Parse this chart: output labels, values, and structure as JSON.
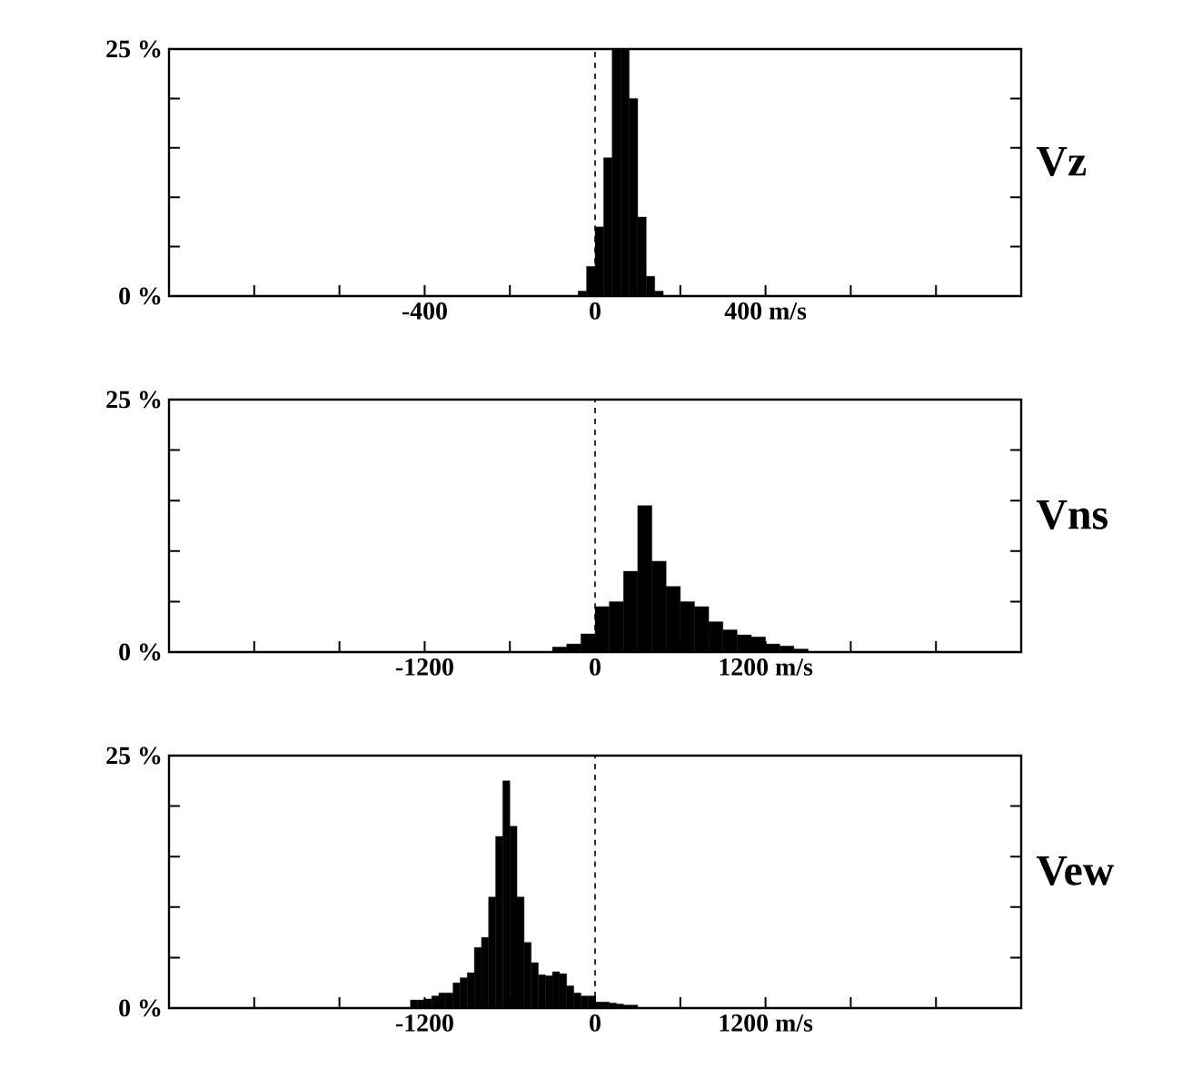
{
  "chart_data": [
    {
      "type": "histogram",
      "title": "Vz",
      "color": "#000000",
      "bins": [
        -40,
        -20,
        0,
        20,
        40,
        60,
        80,
        100,
        120,
        140,
        160
      ],
      "values": [
        0.5,
        3,
        7,
        14,
        25,
        25,
        20,
        8,
        2,
        0.5
      ],
      "xlim": [
        -1000,
        1000
      ],
      "xticks": [
        {
          "value": -800,
          "label": null
        },
        {
          "value": -600,
          "label": null
        },
        {
          "value": -400,
          "label": "-400"
        },
        {
          "value": -200,
          "label": null
        },
        {
          "value": 0,
          "label": "0"
        },
        {
          "value": 200,
          "label": null
        },
        {
          "value": 400,
          "label": "400 m/s"
        },
        {
          "value": 600,
          "label": null
        },
        {
          "value": 800,
          "label": null
        }
      ],
      "ylim": [
        0,
        25
      ],
      "yticks": [
        {
          "value": 0,
          "label": "0 %"
        },
        {
          "value": 5,
          "label": null
        },
        {
          "value": 10,
          "label": null
        },
        {
          "value": 15,
          "label": null
        },
        {
          "value": 20,
          "label": null
        },
        {
          "value": 25,
          "label": "25 %"
        }
      ],
      "ref_lines": [
        {
          "axis": "x",
          "value": 0,
          "line_style": "dashed"
        }
      ]
    },
    {
      "type": "histogram",
      "title": "Vns",
      "color": "#000000",
      "bins": [
        -300,
        -200,
        -100,
        0,
        100,
        200,
        300,
        400,
        500,
        600,
        700,
        800,
        900,
        1000,
        1100,
        1200,
        1300,
        1400,
        1500
      ],
      "values": [
        0.5,
        0.8,
        1.8,
        4.5,
        5,
        8,
        14.5,
        9,
        6.5,
        5,
        4.5,
        3,
        2.2,
        1.7,
        1.5,
        0.8,
        0.6,
        0.3
      ],
      "xlim": [
        -3000,
        3000
      ],
      "xticks": [
        {
          "value": -2400,
          "label": null
        },
        {
          "value": -1800,
          "label": null
        },
        {
          "value": -1200,
          "label": "-1200"
        },
        {
          "value": -600,
          "label": null
        },
        {
          "value": 0,
          "label": "0"
        },
        {
          "value": 600,
          "label": null
        },
        {
          "value": 1200,
          "label": "1200 m/s"
        },
        {
          "value": 1800,
          "label": null
        },
        {
          "value": 2400,
          "label": null
        }
      ],
      "ylim": [
        0,
        25
      ],
      "yticks": [
        {
          "value": 0,
          "label": "0 %"
        },
        {
          "value": 5,
          "label": null
        },
        {
          "value": 10,
          "label": null
        },
        {
          "value": 15,
          "label": null
        },
        {
          "value": 20,
          "label": null
        },
        {
          "value": 25,
          "label": "25 %"
        }
      ],
      "ref_lines": [
        {
          "axis": "x",
          "value": 0,
          "line_style": "dashed"
        }
      ]
    },
    {
      "type": "histogram",
      "title": "Vew",
      "color": "#000000",
      "bins": [
        -1300,
        -1250,
        -1200,
        -1150,
        -1100,
        -1050,
        -1000,
        -950,
        -900,
        -850,
        -800,
        -750,
        -700,
        -650,
        -600,
        -550,
        -500,
        -450,
        -400,
        -350,
        -300,
        -250,
        -200,
        -150,
        -100,
        -50,
        0,
        50,
        100,
        150,
        200,
        250,
        300
      ],
      "values": [
        0.8,
        0.8,
        0.9,
        1.2,
        1.5,
        1.5,
        2.5,
        3,
        3.5,
        6,
        7,
        11,
        17,
        22.5,
        18,
        11,
        6.5,
        4.5,
        3.3,
        3.2,
        3.6,
        3.4,
        2.2,
        1.5,
        1.2,
        1.2,
        0.6,
        0.6,
        0.5,
        0.4,
        0.3,
        0.3
      ],
      "xlim": [
        -3000,
        3000
      ],
      "xticks": [
        {
          "value": -2400,
          "label": null
        },
        {
          "value": -1800,
          "label": null
        },
        {
          "value": -1200,
          "label": "-1200"
        },
        {
          "value": -600,
          "label": null
        },
        {
          "value": 0,
          "label": "0"
        },
        {
          "value": 600,
          "label": null
        },
        {
          "value": 1200,
          "label": "1200 m/s"
        },
        {
          "value": 1800,
          "label": null
        },
        {
          "value": 2400,
          "label": null
        }
      ],
      "ylim": [
        0,
        25
      ],
      "yticks": [
        {
          "value": 0,
          "label": "0 %"
        },
        {
          "value": 5,
          "label": null
        },
        {
          "value": 10,
          "label": null
        },
        {
          "value": 15,
          "label": null
        },
        {
          "value": 20,
          "label": null
        },
        {
          "value": 25,
          "label": "25 %"
        }
      ],
      "ref_lines": [
        {
          "axis": "x",
          "value": 0,
          "line_style": "dashed"
        }
      ]
    }
  ]
}
